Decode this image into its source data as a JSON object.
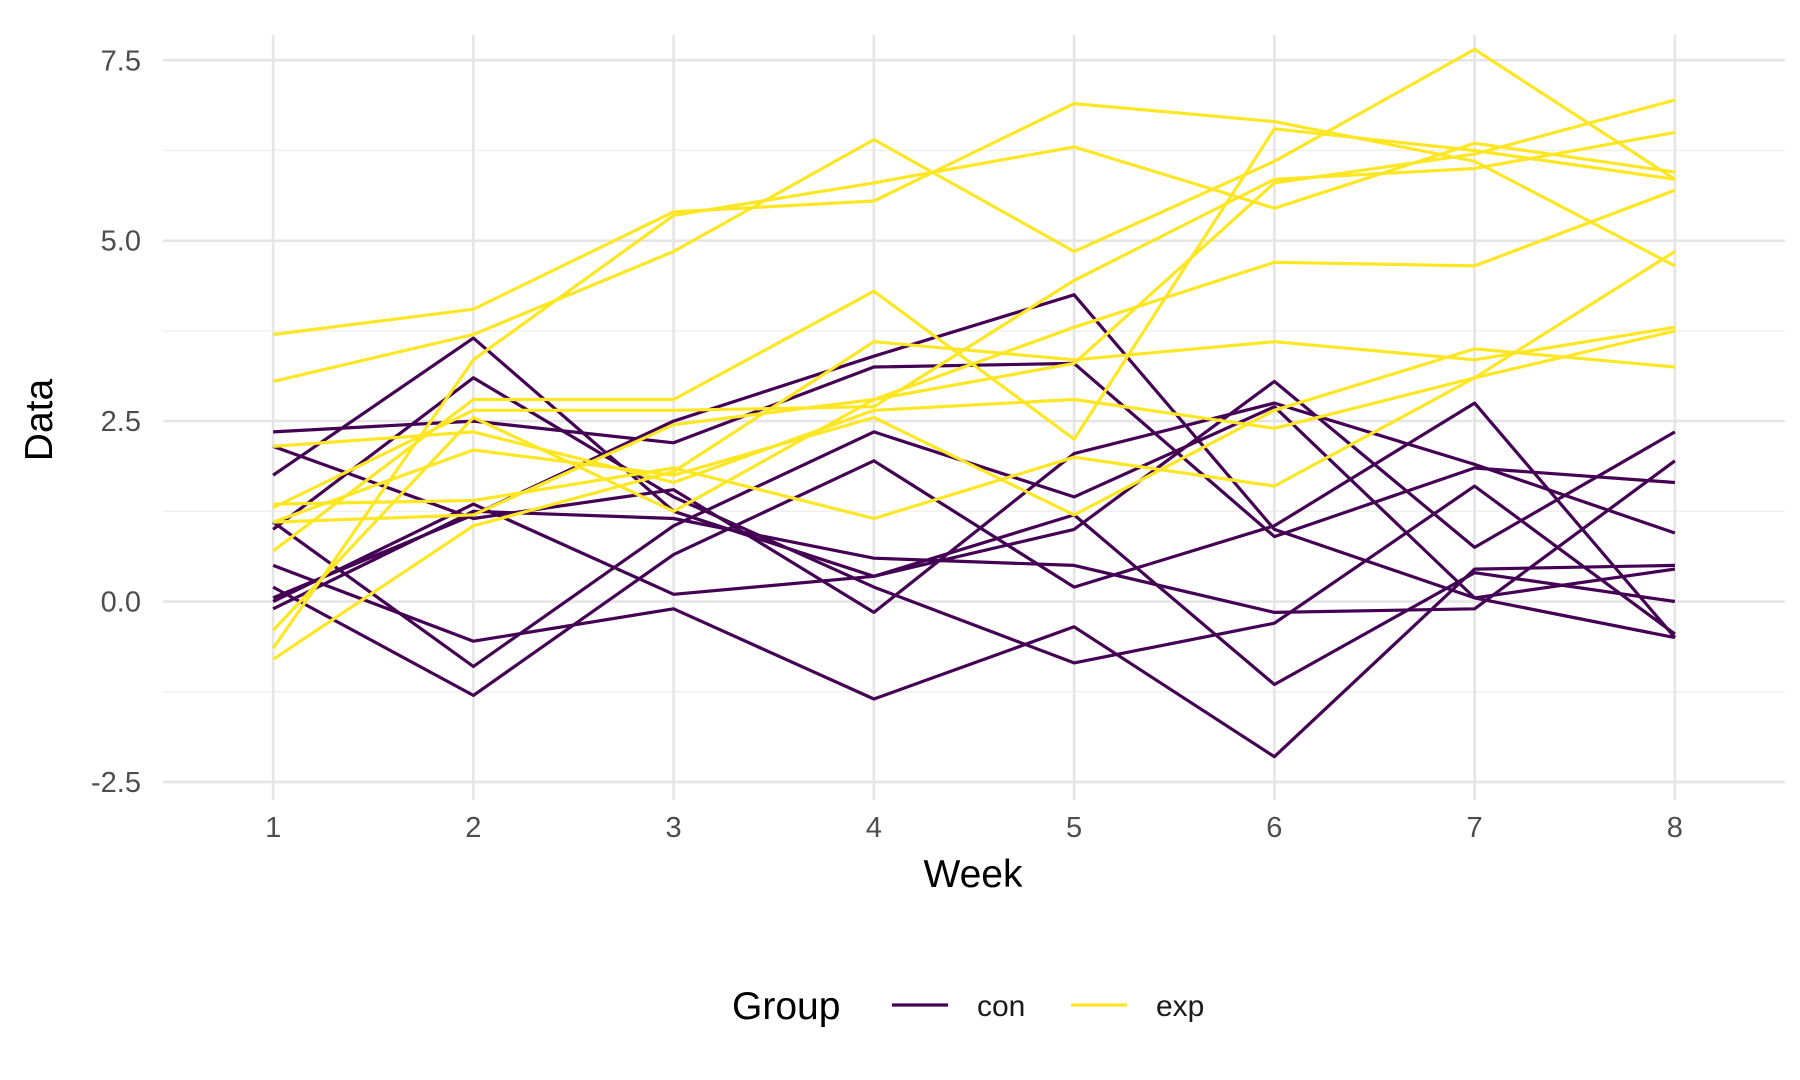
{
  "chart_data": {
    "type": "line",
    "xlabel": "Week",
    "ylabel": "Data",
    "x": [
      1,
      2,
      3,
      4,
      5,
      6,
      7,
      8
    ],
    "xticks": [
      "1",
      "2",
      "3",
      "4",
      "5",
      "6",
      "7",
      "8"
    ],
    "yticks": [
      "-2.5",
      "0.0",
      "2.5",
      "5.0",
      "7.5"
    ],
    "ytick_values": [
      -2.5,
      0,
      2.5,
      5,
      7.5
    ],
    "xlim": [
      0.45,
      8.55
    ],
    "ylim": [
      -2.75,
      7.85
    ],
    "grid": true,
    "legend": {
      "title": "Group",
      "position": "bottom",
      "entries": [
        {
          "label": "con",
          "color": "#440154"
        },
        {
          "label": "exp",
          "color": "#fde725"
        }
      ]
    },
    "series": [
      {
        "group": "con",
        "values": [
          1.1,
          -0.9,
          1.05,
          2.35,
          1.45,
          2.7,
          0.05,
          0.45
        ]
      },
      {
        "group": "con",
        "values": [
          2.35,
          2.5,
          2.2,
          3.25,
          3.3,
          0.9,
          1.85,
          1.65
        ]
      },
      {
        "group": "con",
        "values": [
          0.5,
          -0.55,
          -0.1,
          -1.35,
          -0.35,
          -2.15,
          0.45,
          0.5
        ]
      },
      {
        "group": "con",
        "values": [
          1.75,
          3.65,
          1.25,
          0.35,
          1.0,
          3.05,
          0.75,
          2.35
        ]
      },
      {
        "group": "con",
        "values": [
          0.0,
          1.35,
          0.1,
          0.35,
          1.2,
          -1.15,
          0.4,
          0.0
        ]
      },
      {
        "group": "con",
        "values": [
          2.15,
          1.15,
          1.55,
          -0.15,
          2.05,
          2.75,
          1.9,
          0.95
        ]
      },
      {
        "group": "con",
        "values": [
          0.2,
          -1.3,
          0.65,
          1.95,
          0.2,
          1.05,
          2.75,
          -0.5
        ]
      },
      {
        "group": "con",
        "values": [
          -0.1,
          1.25,
          1.15,
          0.6,
          0.5,
          -0.15,
          -0.1,
          1.95
        ]
      },
      {
        "group": "con",
        "values": [
          1.0,
          3.1,
          1.45,
          0.2,
          -0.85,
          -0.3,
          1.6,
          -0.45
        ]
      },
      {
        "group": "con",
        "values": [
          0.05,
          1.2,
          2.5,
          3.4,
          4.25,
          1.0,
          0.05,
          -0.5
        ]
      },
      {
        "group": "exp",
        "values": [
          3.7,
          4.05,
          5.4,
          5.55,
          6.9,
          6.65,
          6.1,
          4.65
        ]
      },
      {
        "group": "exp",
        "values": [
          3.05,
          3.7,
          4.85,
          6.4,
          4.85,
          6.1,
          7.65,
          5.85
        ]
      },
      {
        "group": "exp",
        "values": [
          1.35,
          1.4,
          1.85,
          1.15,
          2.0,
          1.6,
          3.1,
          3.75
        ]
      },
      {
        "group": "exp",
        "values": [
          0.7,
          2.8,
          2.8,
          4.3,
          2.25,
          6.55,
          6.25,
          5.85
        ]
      },
      {
        "group": "exp",
        "values": [
          -0.4,
          2.55,
          1.25,
          2.8,
          3.8,
          4.7,
          4.65,
          5.7
        ]
      },
      {
        "group": "exp",
        "values": [
          1.1,
          2.1,
          1.75,
          2.55,
          1.2,
          2.65,
          3.5,
          3.25
        ]
      },
      {
        "group": "exp",
        "values": [
          -0.8,
          1.05,
          1.8,
          3.6,
          3.35,
          3.6,
          3.35,
          3.8
        ]
      },
      {
        "group": "exp",
        "values": [
          2.15,
          2.35,
          1.65,
          2.65,
          2.8,
          2.4,
          3.1,
          4.85
        ]
      },
      {
        "group": "exp",
        "values": [
          -0.65,
          3.35,
          5.35,
          5.8,
          6.3,
          5.45,
          6.35,
          5.95
        ]
      },
      {
        "group": "exp",
        "values": [
          1.3,
          2.65,
          2.65,
          2.7,
          4.45,
          5.85,
          6.0,
          6.5
        ]
      },
      {
        "group": "exp",
        "values": [
          1.1,
          1.2,
          2.45,
          2.8,
          3.3,
          5.8,
          6.2,
          6.95
        ]
      }
    ]
  }
}
